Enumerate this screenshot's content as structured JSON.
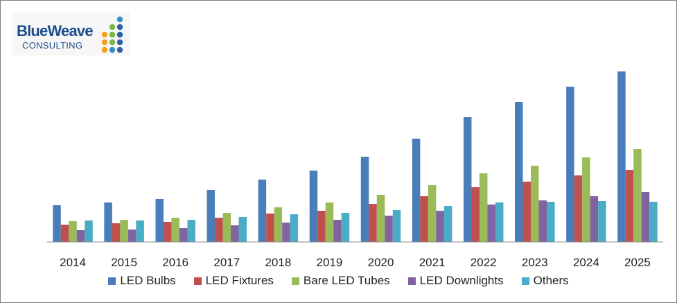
{
  "logo": {
    "brand": "BlueWeave",
    "sub": "CONSULTING",
    "dot_colors": [
      "#2e5fa8",
      "#7ab648",
      "#f2a31b",
      "#3a8ec9"
    ]
  },
  "chart_data": {
    "type": "bar",
    "categories": [
      "2014",
      "2015",
      "2016",
      "2017",
      "2018",
      "2019",
      "2020",
      "2021",
      "2022",
      "2023",
      "2024",
      "2025"
    ],
    "series": [
      {
        "name": "LED Bulbs",
        "color": "#4a7ebb",
        "values": [
          5.3,
          5.7,
          6.2,
          7.5,
          9.0,
          10.3,
          12.3,
          14.9,
          18.0,
          20.2,
          22.4,
          24.6
        ]
      },
      {
        "name": "LED Fixtures",
        "color": "#c0504d",
        "values": [
          2.5,
          2.7,
          2.9,
          3.5,
          4.1,
          4.5,
          5.5,
          6.6,
          7.9,
          8.7,
          9.6,
          10.4
        ]
      },
      {
        "name": "Bare LED Tubes",
        "color": "#9bbb59",
        "values": [
          3.0,
          3.2,
          3.5,
          4.2,
          5.0,
          5.7,
          6.8,
          8.2,
          9.9,
          11.0,
          12.2,
          13.4
        ]
      },
      {
        "name": "LED Downlights",
        "color": "#8064a2",
        "values": [
          1.7,
          1.8,
          2.0,
          2.4,
          2.8,
          3.2,
          3.8,
          4.5,
          5.4,
          6.0,
          6.6,
          7.2
        ]
      },
      {
        "name": "Others",
        "color": "#4bacc6",
        "values": [
          3.1,
          3.1,
          3.2,
          3.6,
          4.0,
          4.2,
          4.6,
          5.2,
          5.7,
          5.8,
          5.9,
          5.8
        ]
      }
    ],
    "ylim": [
      0,
      25.5
    ],
    "grid": false,
    "legend": "bottom"
  }
}
